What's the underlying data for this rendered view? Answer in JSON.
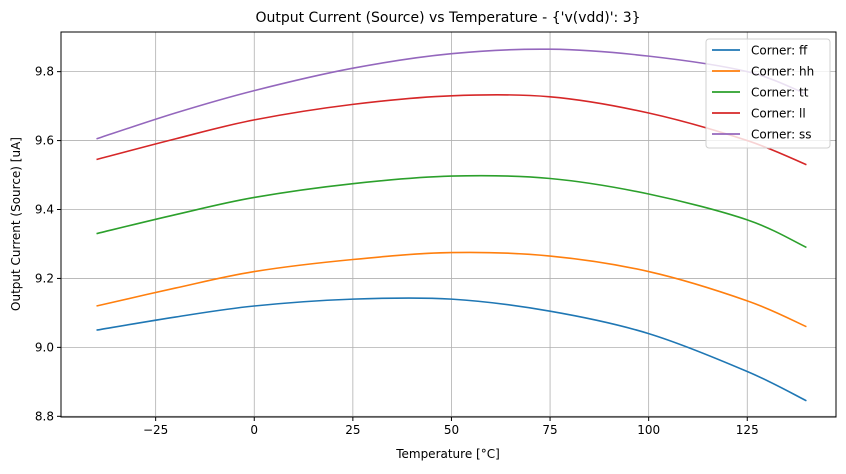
{
  "chart_data": {
    "type": "line",
    "title": "Output Current (Source) vs Temperature - {'v(vdd)': 3}",
    "xlabel": "Temperature [°C]",
    "ylabel": "Output Current (Source) [uA]",
    "xlim": [
      -49,
      147.5
    ],
    "ylim": [
      8.798,
      9.915
    ],
    "xticks": [
      -25,
      0,
      25,
      50,
      75,
      100,
      125
    ],
    "xtick_labels": [
      "−25",
      "0",
      "25",
      "50",
      "75",
      "100",
      "125"
    ],
    "yticks": [
      8.8,
      9.0,
      9.2,
      9.4,
      9.6,
      9.8
    ],
    "ytick_labels": [
      "8.8",
      "9.0",
      "9.2",
      "9.4",
      "9.6",
      "9.8"
    ],
    "grid": true,
    "legend_position": "top-right",
    "x": [
      -40,
      -20,
      0,
      25,
      50,
      75,
      100,
      125,
      140
    ],
    "series": [
      {
        "name": "Corner: ff",
        "color": "#1f77b4",
        "values": [
          9.05,
          9.088,
          9.12,
          9.14,
          9.14,
          9.105,
          9.04,
          8.93,
          8.845
        ]
      },
      {
        "name": "Corner: hh",
        "color": "#ff7f0e",
        "values": [
          9.12,
          9.172,
          9.22,
          9.255,
          9.275,
          9.265,
          9.22,
          9.135,
          9.06
        ]
      },
      {
        "name": "Corner: tt",
        "color": "#2ca02c",
        "values": [
          9.33,
          9.385,
          9.435,
          9.475,
          9.497,
          9.49,
          9.445,
          9.37,
          9.29
        ]
      },
      {
        "name": "Corner: ll",
        "color": "#d62728",
        "values": [
          9.545,
          9.605,
          9.66,
          9.705,
          9.73,
          9.727,
          9.68,
          9.6,
          9.53
        ]
      },
      {
        "name": "Corner: ss",
        "color": "#9467bd",
        "values": [
          9.605,
          9.68,
          9.745,
          9.81,
          9.852,
          9.865,
          9.845,
          9.8,
          9.735
        ]
      }
    ]
  }
}
